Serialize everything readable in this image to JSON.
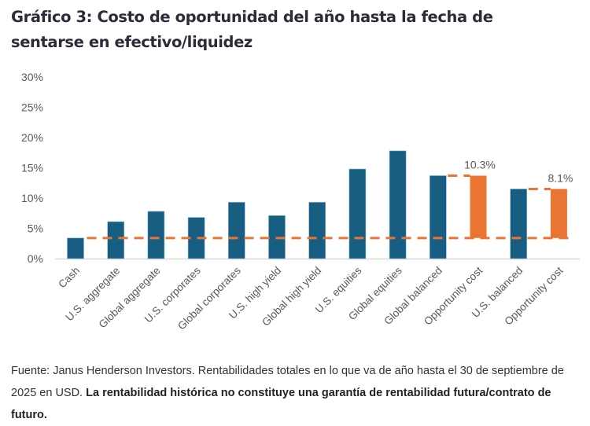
{
  "title": {
    "line1": "Gráfico 3: Costo de oportunidad del año hasta la fecha de",
    "line2": "sentarse en efectivo/liquidez"
  },
  "colors": {
    "bar": "#175e82",
    "opportunity": "#ea7431",
    "dash": "#ea7431",
    "axis": "#d9d9d9",
    "text": "#595959"
  },
  "chart_data": {
    "type": "bar",
    "title": "Gráfico 3: Costo de oportunidad del año hasta la fecha de sentarse en efectivo/liquidez",
    "xlabel": "",
    "ylabel": "",
    "ylim": [
      0,
      30
    ],
    "yticks": [
      "0%",
      "5%",
      "10%",
      "15%",
      "20%",
      "25%",
      "30%"
    ],
    "ytick_values": [
      0,
      5,
      10,
      15,
      20,
      25,
      30
    ],
    "grid": false,
    "legend": "none",
    "categories": [
      "Cash",
      "U.S. aggregate",
      "Global aggregate",
      "U.S. corporates",
      "Global corporates",
      "U.S. high yield",
      "Global high yield",
      "U.S. equities",
      "Global equities",
      "Global balanced",
      "Opportunity cost",
      "U.S. balanced",
      "Opportunity cost"
    ],
    "series": [
      {
        "name": "YTD total return (%)",
        "kind": "bar",
        "values": [
          3.4,
          6.1,
          7.8,
          6.8,
          9.3,
          7.1,
          9.3,
          14.8,
          17.8,
          13.7,
          null,
          11.5,
          null
        ]
      },
      {
        "name": "Opportunity cost (%)",
        "kind": "floating-bar",
        "base": 3.4,
        "values": [
          null,
          null,
          null,
          null,
          null,
          null,
          null,
          null,
          null,
          null,
          10.3,
          null,
          8.1
        ],
        "data_labels": [
          null,
          null,
          null,
          null,
          null,
          null,
          null,
          null,
          null,
          null,
          "10.3%",
          null,
          "8.1%"
        ]
      }
    ],
    "reference_lines": [
      {
        "name": "Cash return level",
        "style": "dashed",
        "value": 3.4
      },
      {
        "name": "Global balanced level",
        "style": "dashed",
        "value": 13.7,
        "from": "Global balanced",
        "to": "Opportunity cost"
      },
      {
        "name": "U.S. balanced level",
        "style": "dashed",
        "value": 11.5,
        "from": "U.S. balanced",
        "to": "Opportunity cost"
      }
    ]
  },
  "footer": {
    "normal": "Fuente: Janus Henderson Investors. Rentabilidades totales en lo que va de año hasta el 30 de septiembre de 2025 en USD. ",
    "bold": "La rentabilidad histórica no constituye una garantía de rentabilidad futura/contrato de futuro."
  }
}
